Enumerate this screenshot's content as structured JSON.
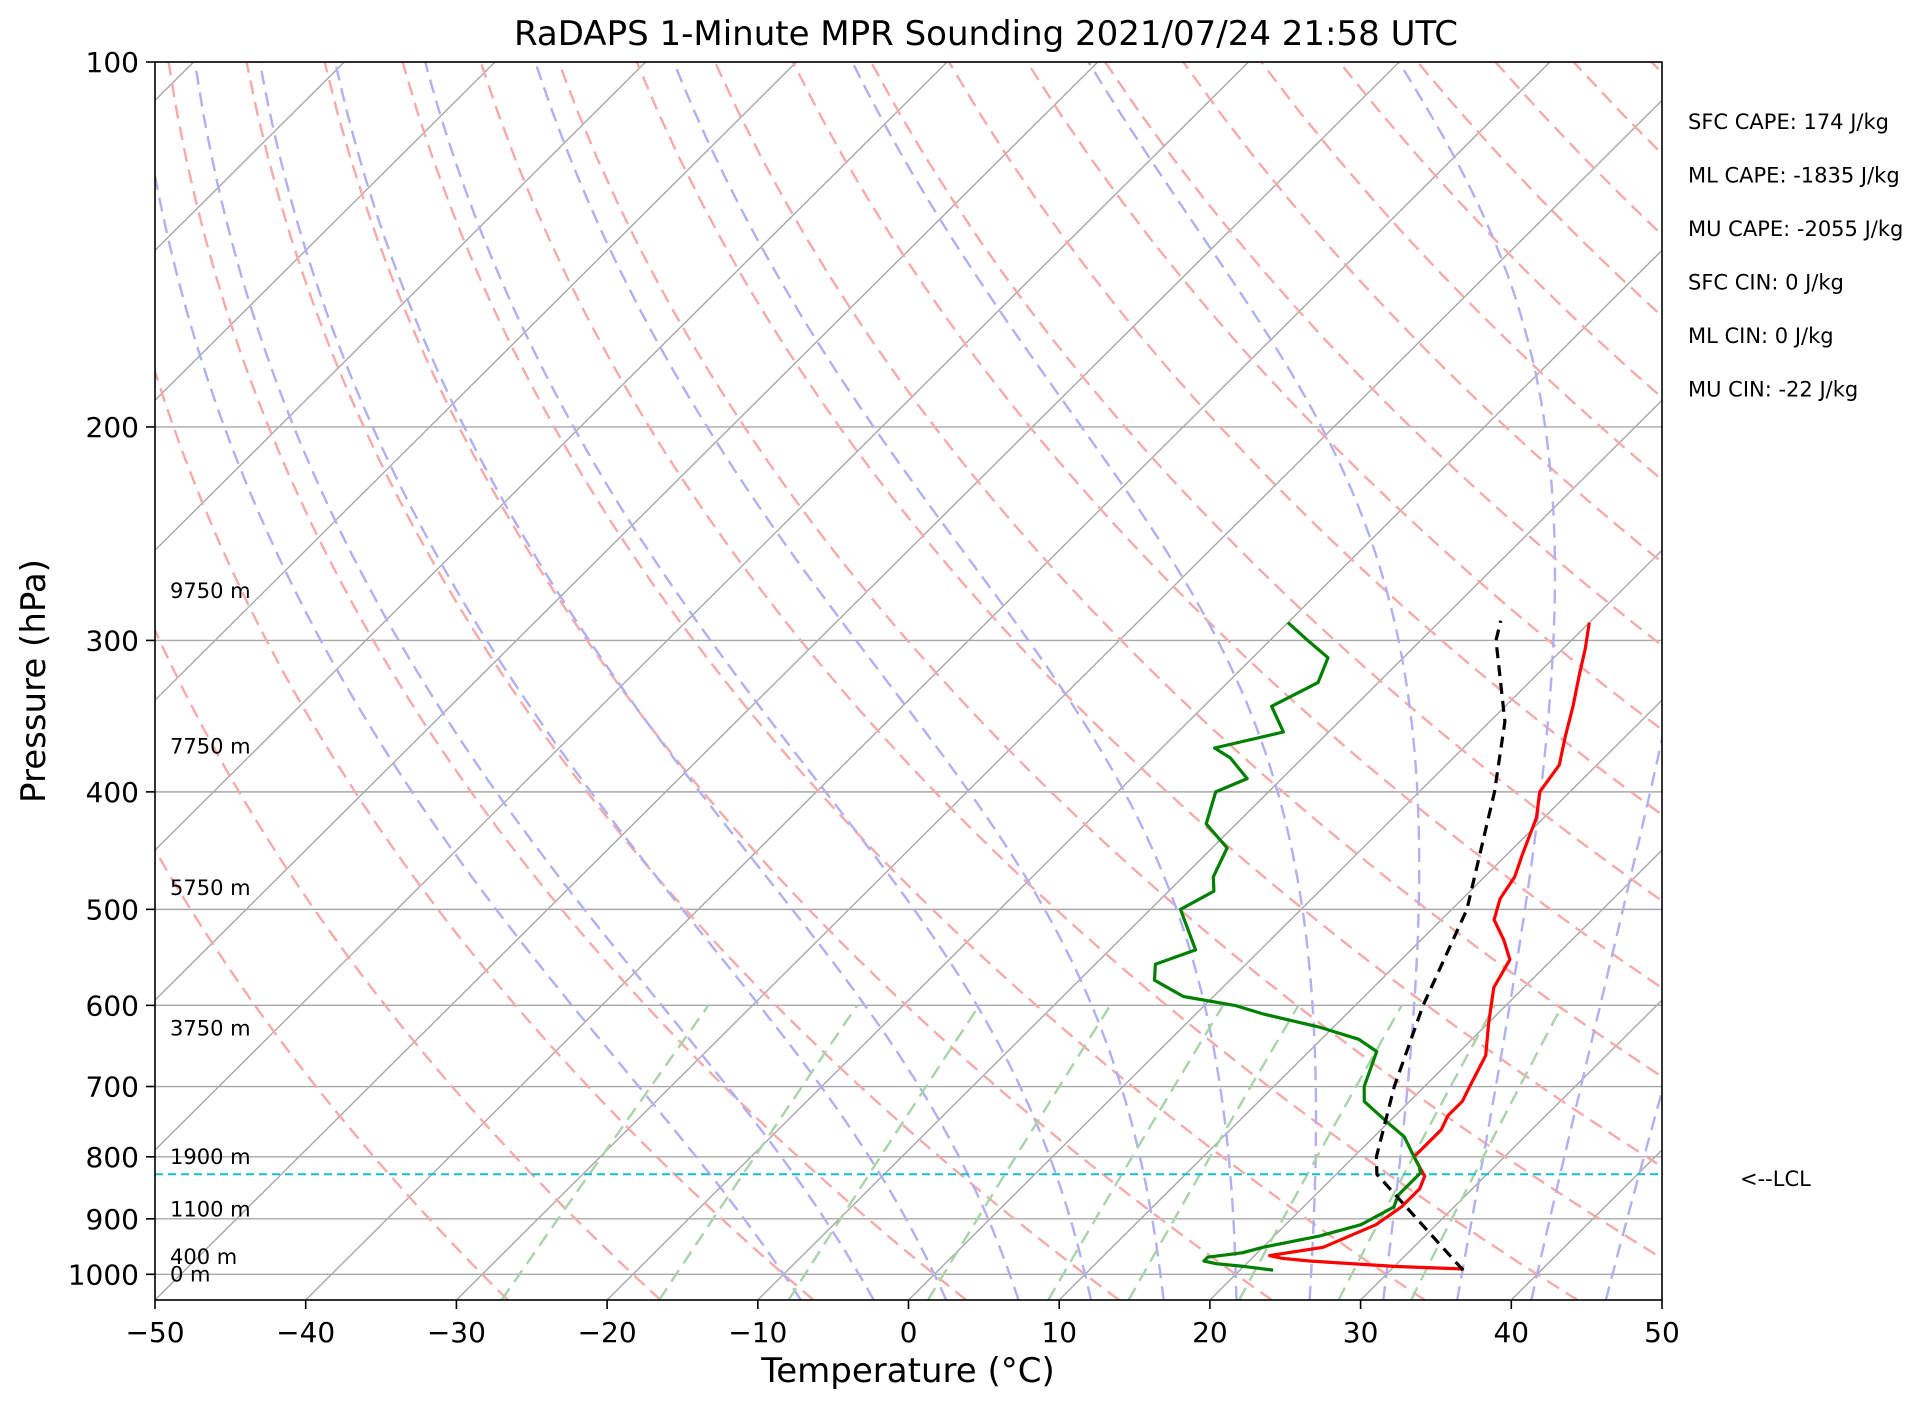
{
  "chart_data": {
    "type": "skew-t",
    "title": "RaDAPS 1-Minute MPR Sounding 2021/07/24 21:58 UTC",
    "xlabel": "Temperature (°C)",
    "ylabel": "Pressure (hPa)",
    "xlim": [
      -50,
      50
    ],
    "ylim": [
      1050,
      100
    ],
    "x_ticks": [
      -50,
      -40,
      -30,
      -20,
      -10,
      0,
      10,
      20,
      30,
      40,
      50
    ],
    "x_tick_labels": [
      "−50",
      "−40",
      "−30",
      "−20",
      "−10",
      "0",
      "10",
      "20",
      "30",
      "40",
      "50"
    ],
    "y_ticks": [
      100,
      200,
      300,
      400,
      500,
      600,
      700,
      800,
      900,
      1000
    ],
    "y_tick_labels": [
      "100",
      "200",
      "300",
      "400",
      "500",
      "600",
      "700",
      "800",
      "900",
      "1000"
    ],
    "y_scale": "log",
    "grid": true,
    "annotations": [
      "SFC CAPE: 174 J/kg",
      "ML CAPE: -1835 J/kg",
      "MU CAPE: -2055 J/kg",
      "SFC CIN: 0 J/kg",
      "ML CIN: 0 J/kg",
      "MU CIN: -22 J/kg"
    ],
    "lcl": {
      "pressure": 827,
      "label": "<--LCL"
    },
    "height_labels": [
      {
        "p": 1000,
        "label": "0 m"
      },
      {
        "p": 968,
        "label": "400 m"
      },
      {
        "p": 884,
        "label": "1100 m"
      },
      {
        "p": 800,
        "label": "1900 m"
      },
      {
        "p": 627,
        "label": "3750 m"
      },
      {
        "p": 480,
        "label": "5750 m"
      },
      {
        "p": 367,
        "label": "7750 m"
      },
      {
        "p": 273,
        "label": "9750 m"
      }
    ],
    "series": [
      {
        "color": "#ff0000",
        "points": [
          [
            990,
            34.8
          ],
          [
            985,
            30
          ],
          [
            975,
            24
          ],
          [
            970,
            22
          ],
          [
            965,
            21
          ],
          [
            950,
            24
          ],
          [
            910,
            26
          ],
          [
            880,
            26.5
          ],
          [
            850,
            26.5
          ],
          [
            830,
            26
          ],
          [
            815,
            25
          ],
          [
            800,
            24
          ],
          [
            760,
            24
          ],
          [
            740,
            23.5
          ],
          [
            720,
            23.5
          ],
          [
            700,
            23
          ],
          [
            660,
            22
          ],
          [
            620,
            20
          ],
          [
            580,
            18
          ],
          [
            550,
            17.2
          ],
          [
            530,
            15.5
          ],
          [
            510,
            13.5
          ],
          [
            490,
            12.5
          ],
          [
            470,
            12
          ],
          [
            450,
            11
          ],
          [
            420,
            9.5
          ],
          [
            400,
            8
          ],
          [
            380,
            7.5
          ],
          [
            360,
            6
          ],
          [
            340,
            4.5
          ],
          [
            320,
            2.8
          ],
          [
            305,
            1.5
          ],
          [
            290,
            0
          ]
        ]
      },
      {
        "color": "#008000",
        "points": [
          [
            992,
            22.2
          ],
          [
            985,
            20
          ],
          [
            980,
            18
          ],
          [
            975,
            17
          ],
          [
            968,
            17
          ],
          [
            960,
            19
          ],
          [
            950,
            20
          ],
          [
            930,
            23
          ],
          [
            910,
            25
          ],
          [
            880,
            26
          ],
          [
            860,
            25.5
          ],
          [
            845,
            25.5
          ],
          [
            835,
            25.5
          ],
          [
            825,
            25.5
          ],
          [
            815,
            25
          ],
          [
            800,
            24
          ],
          [
            770,
            22
          ],
          [
            750,
            20
          ],
          [
            720,
            17
          ],
          [
            700,
            16
          ],
          [
            655,
            14.5
          ],
          [
            640,
            12.5
          ],
          [
            625,
            9
          ],
          [
            610,
            4.5
          ],
          [
            600,
            2
          ],
          [
            590,
            -2
          ],
          [
            572,
            -5
          ],
          [
            555,
            -6
          ],
          [
            540,
            -4.3
          ],
          [
            500,
            -8
          ],
          [
            483,
            -7
          ],
          [
            470,
            -8
          ],
          [
            445,
            -9
          ],
          [
            425,
            -12
          ],
          [
            400,
            -13.5
          ],
          [
            390,
            -12.3
          ],
          [
            375,
            -14.8
          ],
          [
            368,
            -16.5
          ],
          [
            357,
            -13
          ],
          [
            340,
            -15.5
          ],
          [
            325,
            -14
          ],
          [
            310,
            -15
          ],
          [
            300,
            -17.5
          ],
          [
            290,
            -20
          ]
        ]
      },
      {
        "color": "#000000",
        "dashed": true,
        "points": [
          [
            992,
            34.8
          ],
          [
            827,
            22.7
          ],
          [
            800,
            21.5
          ],
          [
            700,
            18
          ],
          [
            600,
            14.5
          ],
          [
            500,
            11
          ],
          [
            400,
            5
          ],
          [
            350,
            1
          ],
          [
            300,
            -5
          ],
          [
            289,
            -6
          ]
        ]
      }
    ],
    "colors": {
      "isotherm": "#a8a8a8",
      "dry_adiabat": "#f7aaaa",
      "moist_adiabat": "#b0b0f2",
      "mixing_ratio": "#a8d4a8",
      "lcl_line": "#17becf",
      "temperature": "#ff0000",
      "dewpoint": "#008000",
      "parcel": "#000000"
    }
  }
}
